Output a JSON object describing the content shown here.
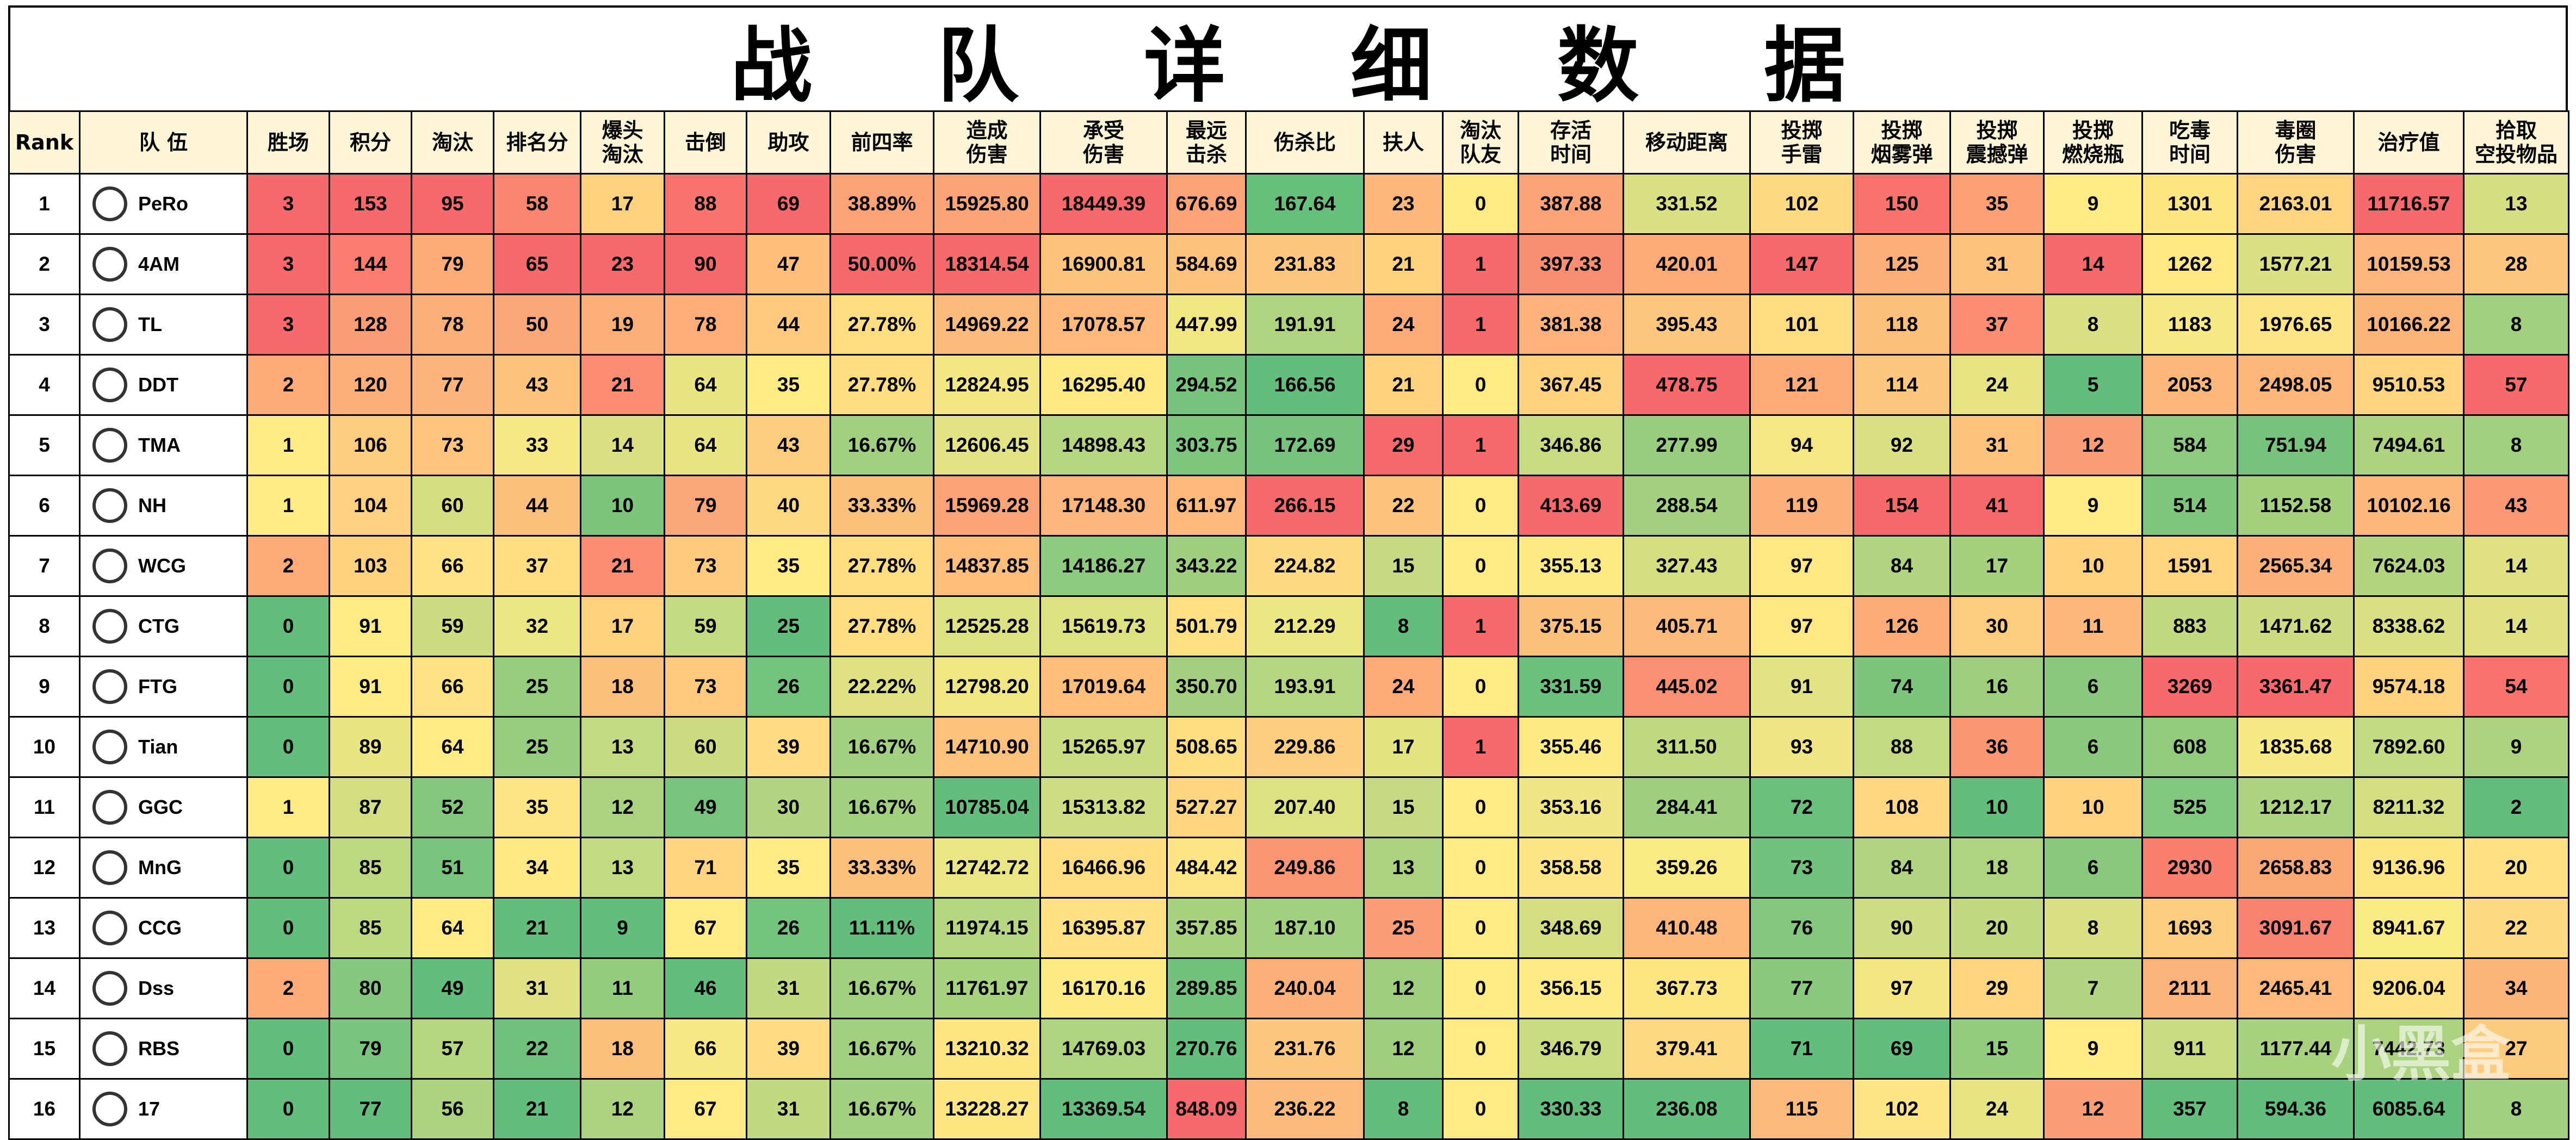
{
  "title": "战队详细数据",
  "watermark": "小黑盒",
  "table": {
    "headers": [
      "Rank",
      "队 伍",
      "胜场",
      "积分",
      "淘汰",
      "排名分",
      "爆头\n淘汰",
      "击倒",
      "助攻",
      "前四率",
      "造成\n伤害",
      "承受\n伤害",
      "最远\n击杀",
      "伤杀比",
      "扶人",
      "淘汰\n队友",
      "存活\n时间",
      "移动距离",
      "投掷\n手雷",
      "投掷\n烟雾弹",
      "投掷\n震撼弹",
      "投掷\n燃烧瓶",
      "吃毒\n时间",
      "毒圈\n伤害",
      "治疗值",
      "拾取\n空投物品"
    ],
    "rows": [
      {
        "rank": "1",
        "team": "PeRo",
        "cells": [
          "3",
          "153",
          "95",
          "58",
          "17",
          "88",
          "69",
          "38.89%",
          "15925.80",
          "18449.39",
          "676.69",
          "167.64",
          "23",
          "0",
          "387.88",
          "331.52",
          "102",
          "150",
          "35",
          "9",
          "1301",
          "2163.01",
          "11716.57",
          "13"
        ]
      },
      {
        "rank": "2",
        "team": "4AM",
        "cells": [
          "3",
          "144",
          "79",
          "65",
          "23",
          "90",
          "47",
          "50.00%",
          "18314.54",
          "16900.81",
          "584.69",
          "231.83",
          "21",
          "1",
          "397.33",
          "420.01",
          "147",
          "125",
          "31",
          "14",
          "1262",
          "1577.21",
          "10159.53",
          "28"
        ]
      },
      {
        "rank": "3",
        "team": "TL",
        "cells": [
          "3",
          "128",
          "78",
          "50",
          "19",
          "78",
          "44",
          "27.78%",
          "14969.22",
          "17078.57",
          "447.99",
          "191.91",
          "24",
          "1",
          "381.38",
          "395.43",
          "101",
          "118",
          "37",
          "8",
          "1183",
          "1976.65",
          "10166.22",
          "8"
        ]
      },
      {
        "rank": "4",
        "team": "DDT",
        "cells": [
          "2",
          "120",
          "77",
          "43",
          "21",
          "64",
          "35",
          "27.78%",
          "12824.95",
          "16295.40",
          "294.52",
          "166.56",
          "21",
          "0",
          "367.45",
          "478.75",
          "121",
          "114",
          "24",
          "5",
          "2053",
          "2498.05",
          "9510.53",
          "57"
        ]
      },
      {
        "rank": "5",
        "team": "TMA",
        "cells": [
          "1",
          "106",
          "73",
          "33",
          "14",
          "64",
          "43",
          "16.67%",
          "12606.45",
          "14898.43",
          "303.75",
          "172.69",
          "29",
          "1",
          "346.86",
          "277.99",
          "94",
          "92",
          "31",
          "12",
          "584",
          "751.94",
          "7494.61",
          "8"
        ]
      },
      {
        "rank": "6",
        "team": "NH",
        "cells": [
          "1",
          "104",
          "60",
          "44",
          "10",
          "79",
          "40",
          "33.33%",
          "15969.28",
          "17148.30",
          "611.97",
          "266.15",
          "22",
          "0",
          "413.69",
          "288.54",
          "119",
          "154",
          "41",
          "9",
          "514",
          "1152.58",
          "10102.16",
          "43"
        ]
      },
      {
        "rank": "7",
        "team": "WCG",
        "cells": [
          "2",
          "103",
          "66",
          "37",
          "21",
          "73",
          "35",
          "27.78%",
          "14837.85",
          "14186.27",
          "343.22",
          "224.82",
          "15",
          "0",
          "355.13",
          "327.43",
          "97",
          "84",
          "17",
          "10",
          "1591",
          "2565.34",
          "7624.03",
          "14"
        ]
      },
      {
        "rank": "8",
        "team": "CTG",
        "cells": [
          "0",
          "91",
          "59",
          "32",
          "17",
          "59",
          "25",
          "27.78%",
          "12525.28",
          "15619.73",
          "501.79",
          "212.29",
          "8",
          "1",
          "375.15",
          "405.71",
          "97",
          "126",
          "30",
          "11",
          "883",
          "1471.62",
          "8338.62",
          "14"
        ]
      },
      {
        "rank": "9",
        "team": "FTG",
        "cells": [
          "0",
          "91",
          "66",
          "25",
          "18",
          "73",
          "26",
          "22.22%",
          "12798.20",
          "17019.64",
          "350.70",
          "193.91",
          "24",
          "0",
          "331.59",
          "445.02",
          "91",
          "74",
          "16",
          "6",
          "3269",
          "3361.47",
          "9574.18",
          "54"
        ]
      },
      {
        "rank": "10",
        "team": "Tian",
        "cells": [
          "0",
          "89",
          "64",
          "25",
          "13",
          "60",
          "39",
          "16.67%",
          "14710.90",
          "15265.97",
          "508.65",
          "229.86",
          "17",
          "1",
          "355.46",
          "311.50",
          "93",
          "88",
          "36",
          "6",
          "608",
          "1835.68",
          "7892.60",
          "9"
        ]
      },
      {
        "rank": "11",
        "team": "GGC",
        "cells": [
          "1",
          "87",
          "52",
          "35",
          "12",
          "49",
          "30",
          "16.67%",
          "10785.04",
          "15313.82",
          "527.27",
          "207.40",
          "15",
          "0",
          "353.16",
          "284.41",
          "72",
          "108",
          "10",
          "10",
          "525",
          "1212.17",
          "8211.32",
          "2"
        ]
      },
      {
        "rank": "12",
        "team": "MnG",
        "cells": [
          "0",
          "85",
          "51",
          "34",
          "13",
          "71",
          "35",
          "33.33%",
          "12742.72",
          "16466.96",
          "484.42",
          "249.86",
          "13",
          "0",
          "358.58",
          "359.26",
          "73",
          "84",
          "18",
          "6",
          "2930",
          "2658.83",
          "9136.96",
          "20"
        ]
      },
      {
        "rank": "13",
        "team": "CCG",
        "cells": [
          "0",
          "85",
          "64",
          "21",
          "9",
          "67",
          "26",
          "11.11%",
          "11974.15",
          "16395.87",
          "357.85",
          "187.10",
          "25",
          "0",
          "348.69",
          "410.48",
          "76",
          "90",
          "20",
          "8",
          "1693",
          "3091.67",
          "8941.67",
          "22"
        ]
      },
      {
        "rank": "14",
        "team": "Dss",
        "cells": [
          "2",
          "80",
          "49",
          "31",
          "11",
          "46",
          "31",
          "16.67%",
          "11761.97",
          "16170.16",
          "289.85",
          "240.04",
          "12",
          "0",
          "356.15",
          "367.73",
          "77",
          "97",
          "29",
          "7",
          "2111",
          "2465.41",
          "9206.04",
          "34"
        ]
      },
      {
        "rank": "15",
        "team": "RBS",
        "cells": [
          "0",
          "79",
          "57",
          "22",
          "18",
          "66",
          "39",
          "16.67%",
          "13210.32",
          "14769.03",
          "270.76",
          "231.76",
          "12",
          "0",
          "346.79",
          "379.41",
          "71",
          "69",
          "15",
          "9",
          "911",
          "1177.44",
          "7442.73",
          "27"
        ]
      },
      {
        "rank": "16",
        "team": "17",
        "cells": [
          "0",
          "77",
          "56",
          "21",
          "12",
          "67",
          "31",
          "16.67%",
          "13228.27",
          "13369.54",
          "848.09",
          "236.22",
          "8",
          "0",
          "330.33",
          "236.08",
          "115",
          "102",
          "24",
          "12",
          "357",
          "594.36",
          "6085.64",
          "8"
        ]
      }
    ]
  }
}
